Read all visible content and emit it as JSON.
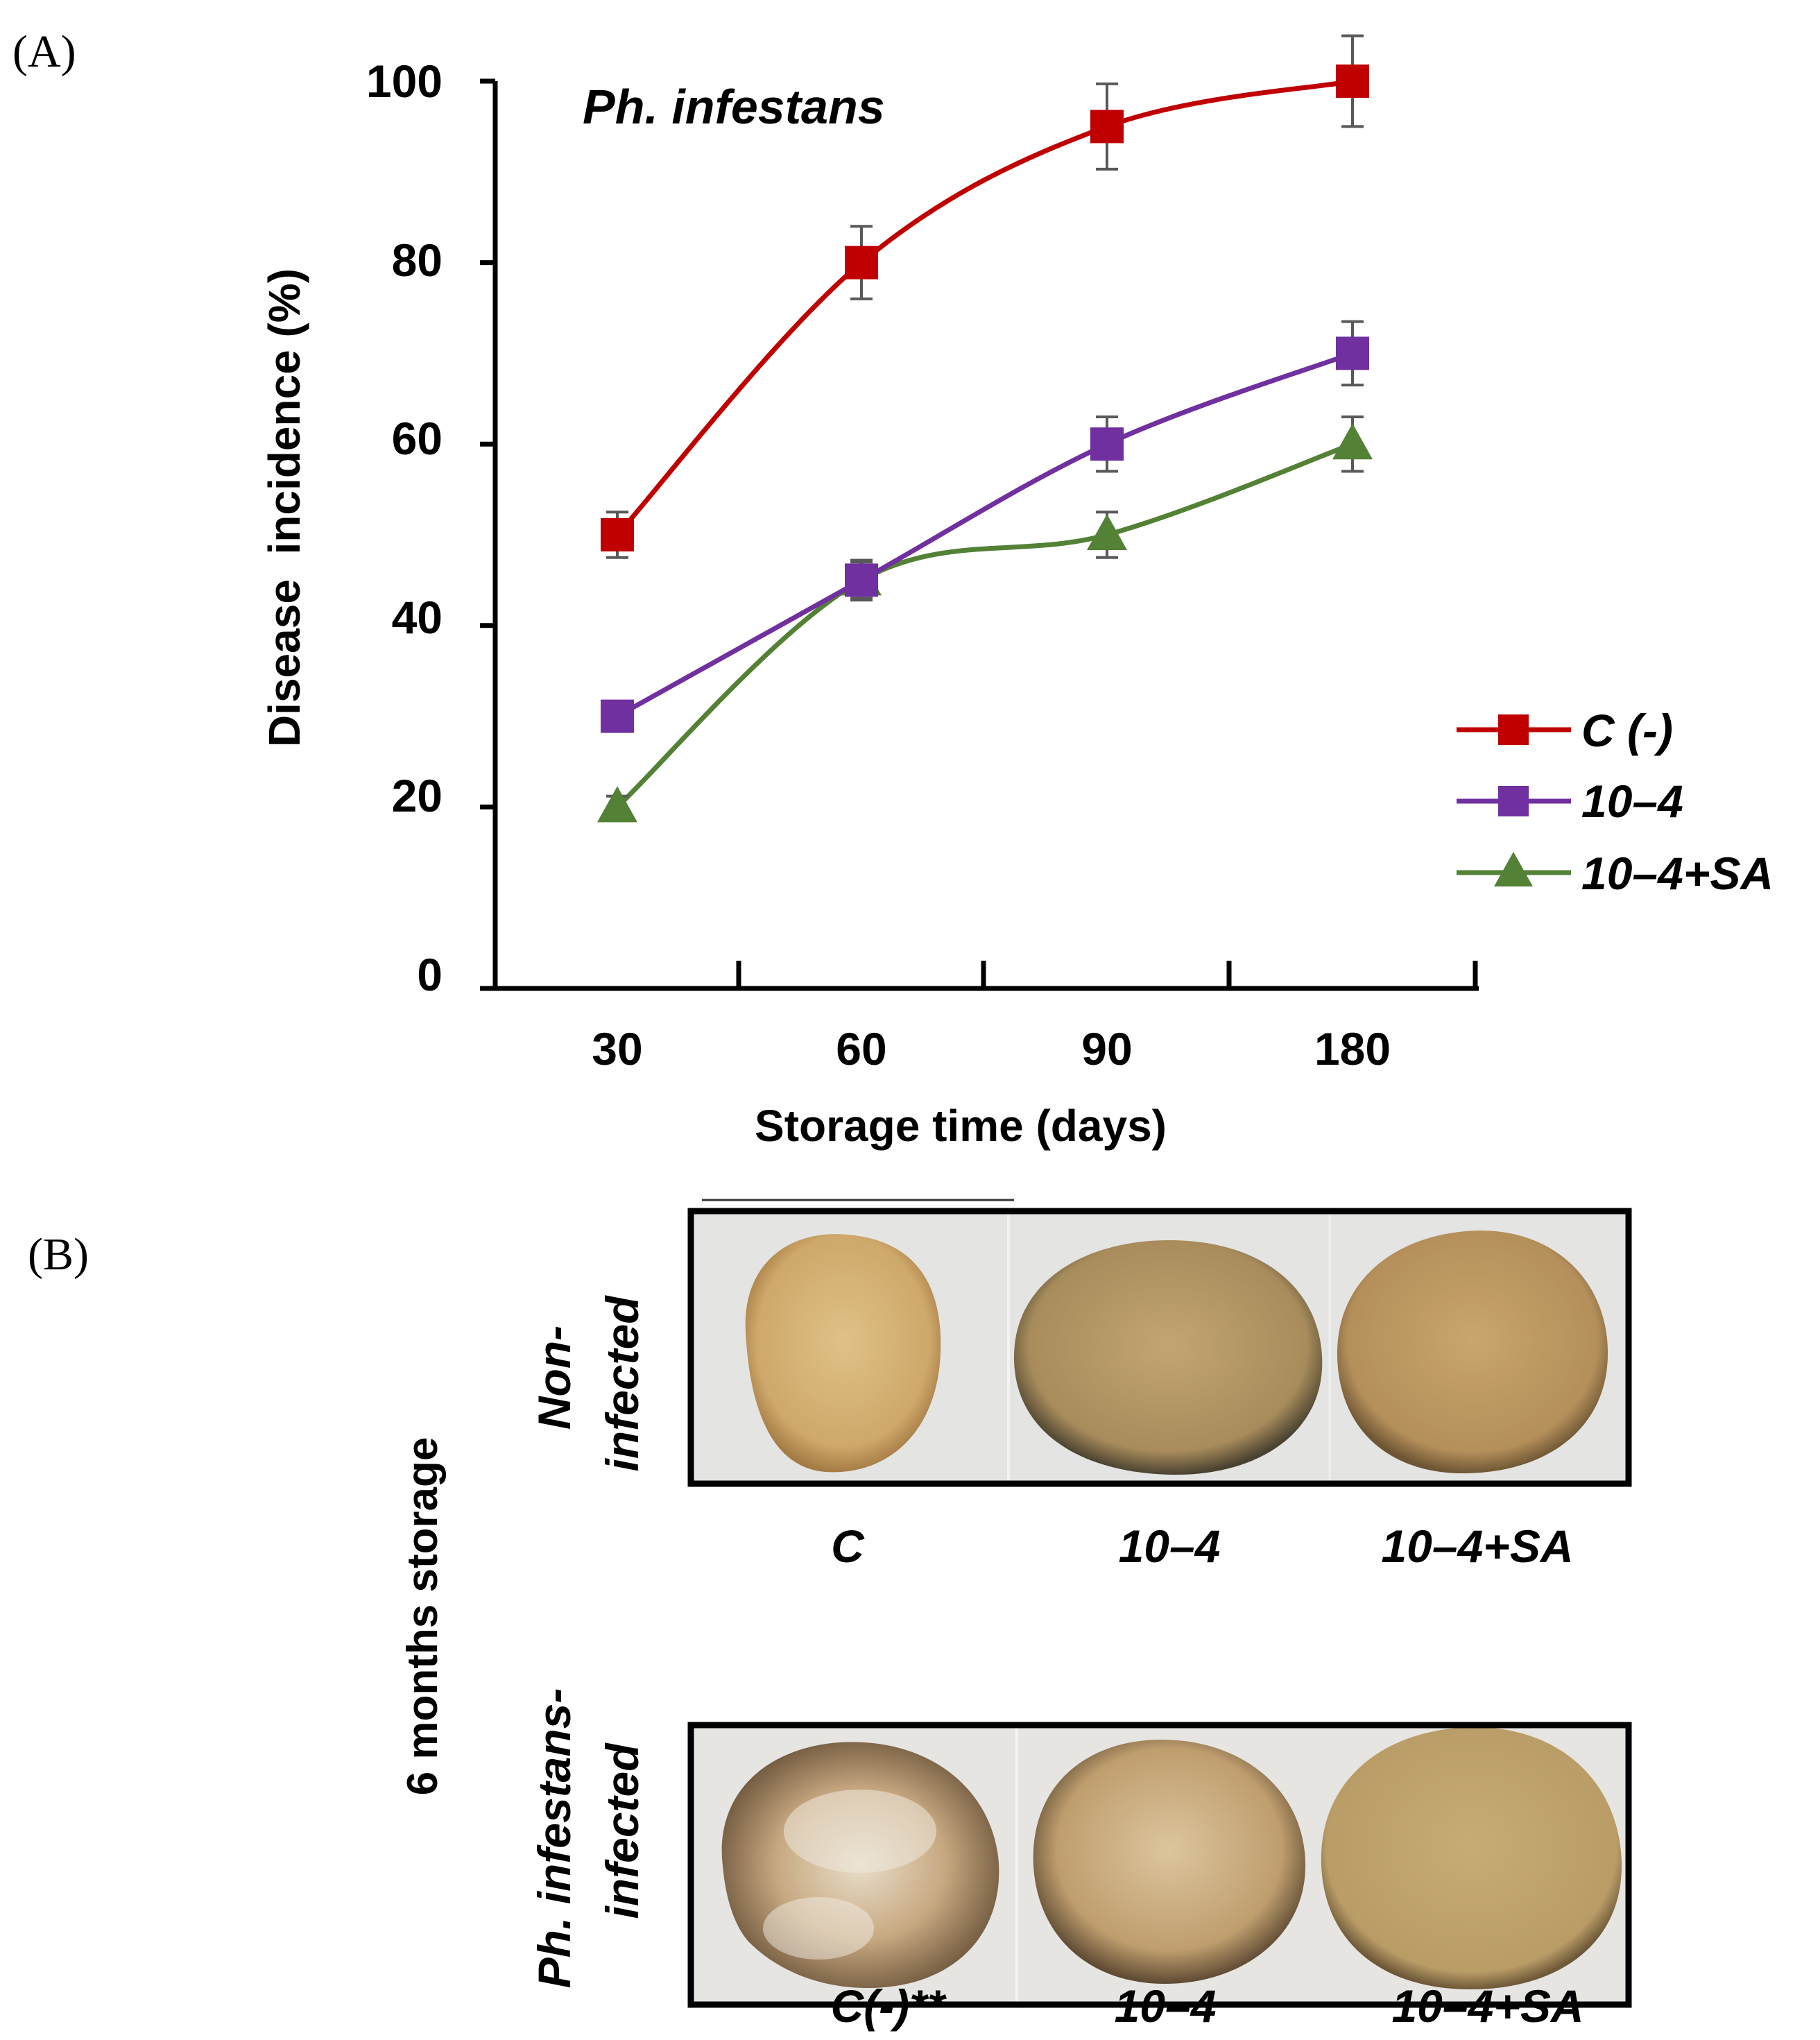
{
  "panels": {
    "a_label": "(A)",
    "b_label": "(B)"
  },
  "chart_data": {
    "type": "line",
    "title": "Ph. infestans",
    "xlabel": "Storage time (days)",
    "ylabel": "Disease  incidence (%)",
    "categories": [
      "30",
      "60",
      "90",
      "180"
    ],
    "ylim": [
      0,
      100
    ],
    "yticks": [
      0,
      20,
      40,
      60,
      80,
      100
    ],
    "legend_position": "right",
    "series": [
      {
        "name": "C (-)",
        "marker": "square",
        "color": "#c00000",
        "values": [
          50,
          80,
          95,
          100
        ],
        "errors": [
          2.5,
          4,
          4.7,
          5
        ]
      },
      {
        "name": "10–4",
        "marker": "square",
        "color": "#7030a0",
        "values": [
          30,
          45,
          60,
          70
        ],
        "errors": [
          1.5,
          2.2,
          3,
          3.5
        ]
      },
      {
        "name": "10–4+SA",
        "marker": "triangle",
        "color": "#538135",
        "values": [
          20,
          45,
          50,
          60
        ],
        "errors": [
          1.2,
          2,
          2.5,
          3
        ]
      }
    ]
  },
  "photos": {
    "side_label": "6 months storage",
    "row1": {
      "label_line1": "Non-",
      "label_line2": "infected",
      "captions": [
        "C",
        "10–4",
        "10–4+SA"
      ]
    },
    "row2": {
      "label_line1": "Ph. infestans-",
      "label_line2": "infected",
      "captions": [
        "C(-)**",
        "10–4",
        "10–4+SA"
      ]
    },
    "colors": {
      "background": "#e4e4e2",
      "flesh_light": "#d6b479",
      "flesh_tan": "#b59665",
      "rim_dark": "#4e4433",
      "mold": "#f0ece4"
    }
  }
}
